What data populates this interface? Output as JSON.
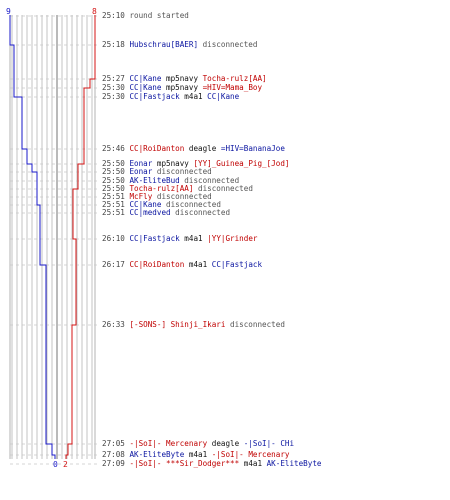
{
  "colors": {
    "blue_team": "#1a1ac8",
    "red_team": "#d41414",
    "event_text": "#555555",
    "grid": "#b4b4b4",
    "dash": "#c8c8c8"
  },
  "counts": {
    "top_left": "9",
    "top_right": "8",
    "bottom_blue": "0",
    "bottom_red": "2"
  },
  "events": [
    {
      "time": "25:10",
      "parts": [
        {
          "t": "round started",
          "c": "gray"
        }
      ]
    },
    {
      "time": "25:18",
      "parts": [
        {
          "t": "Hubschrau[BAER]",
          "c": "blue"
        },
        {
          "t": " disconnected",
          "c": "gray"
        }
      ]
    },
    {
      "time": "25:27",
      "parts": [
        {
          "t": "CC|Kane",
          "c": "blue"
        },
        {
          "t": " mp5navy ",
          "c": "black"
        },
        {
          "t": "Tocha-rulz[AA]",
          "c": "red"
        }
      ]
    },
    {
      "time": "25:30",
      "parts": [
        {
          "t": "CC|Kane",
          "c": "blue"
        },
        {
          "t": " mp5navy ",
          "c": "black"
        },
        {
          "t": "=HIV=Mama_Boy",
          "c": "red"
        }
      ]
    },
    {
      "time": "25:30",
      "parts": [
        {
          "t": "CC|Fastjack",
          "c": "blue"
        },
        {
          "t": " m4a1 ",
          "c": "black"
        },
        {
          "t": "CC|Kane",
          "c": "blue"
        }
      ]
    },
    {
      "time": "25:46",
      "parts": [
        {
          "t": "CC|RoiDanton",
          "c": "red"
        },
        {
          "t": " deagle ",
          "c": "black"
        },
        {
          "t": "=HIV=BananaJoe",
          "c": "blue"
        }
      ]
    },
    {
      "time": "25:50",
      "parts": [
        {
          "t": "Eonar",
          "c": "blue"
        },
        {
          "t": " mp5navy ",
          "c": "black"
        },
        {
          "t": "[YY]_Guinea_Pig_[Jod]",
          "c": "red"
        }
      ]
    },
    {
      "time": "25:50",
      "parts": [
        {
          "t": "Eonar",
          "c": "blue"
        },
        {
          "t": " disconnected",
          "c": "gray"
        }
      ]
    },
    {
      "time": "25:50",
      "parts": [
        {
          "t": "AK-EliteBud",
          "c": "blue"
        },
        {
          "t": " disconnected",
          "c": "gray"
        }
      ]
    },
    {
      "time": "25:50",
      "parts": [
        {
          "t": "Tocha-rulz[AA]",
          "c": "red"
        },
        {
          "t": " disconnected",
          "c": "gray"
        }
      ]
    },
    {
      "time": "25:51",
      "parts": [
        {
          "t": "McFly",
          "c": "red"
        },
        {
          "t": " disconnected",
          "c": "gray"
        }
      ]
    },
    {
      "time": "25:51",
      "parts": [
        {
          "t": "CC|Kane",
          "c": "blue"
        },
        {
          "t": " disconnected",
          "c": "gray"
        }
      ]
    },
    {
      "time": "25:51",
      "parts": [
        {
          "t": "CC|medved",
          "c": "blue"
        },
        {
          "t": " disconnected",
          "c": "gray"
        }
      ]
    },
    {
      "time": "26:10",
      "parts": [
        {
          "t": "CC|Fastjack",
          "c": "blue"
        },
        {
          "t": " m4a1 ",
          "c": "black"
        },
        {
          "t": "|YY|Grinder",
          "c": "red"
        }
      ]
    },
    {
      "time": "26:17",
      "parts": [
        {
          "t": "CC|RoiDanton",
          "c": "red"
        },
        {
          "t": " m4a1 ",
          "c": "black"
        },
        {
          "t": "CC|Fastjack",
          "c": "blue"
        }
      ]
    },
    {
      "time": "26:33",
      "parts": [
        {
          "t": "[-SONS-] Shinji_Ikari",
          "c": "red"
        },
        {
          "t": " disconnected",
          "c": "gray"
        }
      ]
    },
    {
      "time": "27:05",
      "parts": [
        {
          "t": "-|SoI|- Mercenary",
          "c": "red"
        },
        {
          "t": " deagle ",
          "c": "black"
        },
        {
          "t": "-|SoI|- CHi",
          "c": "blue"
        }
      ]
    },
    {
      "time": "27:08",
      "parts": [
        {
          "t": "AK-EliteByte",
          "c": "blue"
        },
        {
          "t": " m4a1 ",
          "c": "black"
        },
        {
          "t": "-|SoI|- Mercenary",
          "c": "red"
        }
      ]
    },
    {
      "time": "27:09",
      "parts": [
        {
          "t": "-|SoI|- ***Sir_Dodger***",
          "c": "red"
        },
        {
          "t": " m4a1 ",
          "c": "black"
        },
        {
          "t": "AK-EliteByte",
          "c": "blue"
        }
      ]
    }
  ]
}
